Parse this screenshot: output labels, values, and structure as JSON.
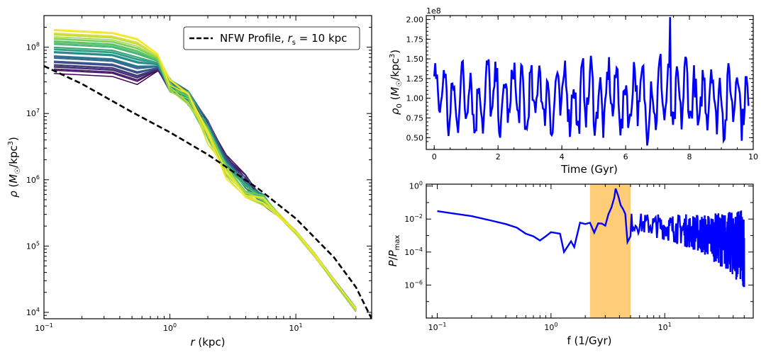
{
  "chart_data": [
    {
      "id": "density_profiles",
      "type": "line",
      "xscale": "log",
      "yscale": "log",
      "xlim": [
        0.1,
        40
      ],
      "ylim": [
        8000,
        300000000
      ],
      "xlabel": "r (kpc)",
      "ylabel": "ρ (M☉/kpc³)",
      "x_ticks": [
        {
          "v": 0.1,
          "b": "10",
          "e": "−1"
        },
        {
          "v": 1,
          "b": "10",
          "e": "0"
        },
        {
          "v": 10,
          "b": "10",
          "e": "1"
        }
      ],
      "y_ticks": [
        {
          "v": 10000,
          "b": "10",
          "e": "4"
        },
        {
          "v": 100000,
          "b": "10",
          "e": "5"
        },
        {
          "v": 1000000,
          "b": "10",
          "e": "6"
        },
        {
          "v": 10000000,
          "b": "10",
          "e": "7"
        },
        {
          "v": 100000000,
          "b": "10",
          "e": "8"
        }
      ],
      "legend": {
        "position": "top-right",
        "label_prefix": "NFW Profile, ",
        "label_math": "r",
        "label_sub": "s",
        "label_suffix": " = 10 kpc"
      },
      "r_grid": [
        0.12,
        0.2,
        0.35,
        0.55,
        0.8,
        1.0,
        1.4,
        2.0,
        2.8,
        4.0,
        5.5,
        7.5,
        10,
        14,
        20,
        30
      ],
      "profile_family": {
        "count": 40,
        "colormap": "viridis",
        "rho_center_range": [
          42000000,
          180000000
        ],
        "note": "snapshot density profiles, colored by time"
      },
      "nfw": {
        "name": "NFW Profile, r_s = 10 kpc",
        "r": [
          0.1,
          0.2,
          0.5,
          1,
          2,
          5,
          10,
          20,
          30,
          40
        ],
        "rho": [
          52000000,
          28000000,
          10500000,
          5200000,
          2400000,
          740000,
          260000,
          68000,
          24000,
          8000
        ]
      }
    },
    {
      "id": "central_density_time",
      "type": "line",
      "xlim": [
        -0.25,
        10
      ],
      "ylim": [
        0.35,
        2.05
      ],
      "xlabel": "Time (Gyr)",
      "ylabel": "ρ₀ (M☉/kpc³)",
      "y_multiplier": "1e8",
      "x_ticks": [
        0,
        2,
        4,
        6,
        8,
        10
      ],
      "y_ticks": [
        0.5,
        0.75,
        1.0,
        1.25,
        1.5,
        1.75,
        2.0
      ],
      "y_tick_labels": [
        "0.50",
        "0.75",
        "1.00",
        "1.25",
        "1.50",
        "1.75",
        "2.00"
      ],
      "series": {
        "name": "rho_0(t)",
        "n_points": 330,
        "t_start": 0,
        "t_end": 9.85,
        "mean": 1.0,
        "min": 0.4,
        "max": 2.03,
        "color": "#0000ff"
      }
    },
    {
      "id": "power_spectrum",
      "type": "line",
      "xscale": "log",
      "yscale": "log",
      "xlim": [
        0.08,
        60
      ],
      "ylim": [
        1e-08,
        1.3
      ],
      "xlabel": "f (1/Gyr)",
      "ylabel": "P/Pmax",
      "x_ticks": [
        {
          "v": 0.1,
          "b": "10",
          "e": "−1"
        },
        {
          "v": 1,
          "b": "10",
          "e": "0"
        },
        {
          "v": 10,
          "b": "10",
          "e": "1"
        }
      ],
      "y_ticks": [
        {
          "v": 1e-06,
          "b": "10",
          "e": "−6"
        },
        {
          "v": 0.0001,
          "b": "10",
          "e": "−4"
        },
        {
          "v": 0.01,
          "b": "10",
          "e": "−2"
        },
        {
          "v": 1,
          "b": "10",
          "e": "0"
        }
      ],
      "highlight_band": {
        "f_min": 2.2,
        "f_max": 5.0,
        "color": "#ffcc77"
      },
      "series": {
        "name": "P/Pmax",
        "color": "#0000ff",
        "low_f": [
          [
            0.1,
            0.03
          ],
          [
            0.2,
            0.015
          ],
          [
            0.3,
            0.008
          ],
          [
            0.4,
            0.005
          ],
          [
            0.5,
            0.003
          ],
          [
            0.6,
            0.0013
          ],
          [
            0.7,
            0.0009
          ],
          [
            0.8,
            0.0005
          ],
          [
            0.9,
            0.0009
          ],
          [
            1.0,
            0.0016
          ],
          [
            1.2,
            0.0013
          ],
          [
            1.3,
            0.0001
          ],
          [
            1.5,
            0.00045
          ],
          [
            1.6,
            0.0002
          ],
          [
            1.8,
            0.006
          ],
          [
            2.0,
            0.005
          ],
          [
            2.2,
            0.006
          ],
          [
            2.4,
            0.0015
          ],
          [
            2.6,
            0.0055
          ],
          [
            2.8,
            0.0053
          ],
          [
            3.0,
            0.004
          ],
          [
            3.2,
            0.02
          ],
          [
            3.4,
            0.05
          ],
          [
            3.6,
            0.2
          ],
          [
            3.7,
            0.7
          ],
          [
            3.9,
            0.25
          ],
          [
            4.1,
            0.07
          ],
          [
            4.3,
            0.04
          ],
          [
            4.5,
            0.02
          ],
          [
            4.7,
            0.0004
          ],
          [
            5.0,
            0.0009
          ]
        ],
        "tail": {
          "f_start": 5.0,
          "f_end": 50,
          "n_points": 420
        }
      }
    }
  ]
}
